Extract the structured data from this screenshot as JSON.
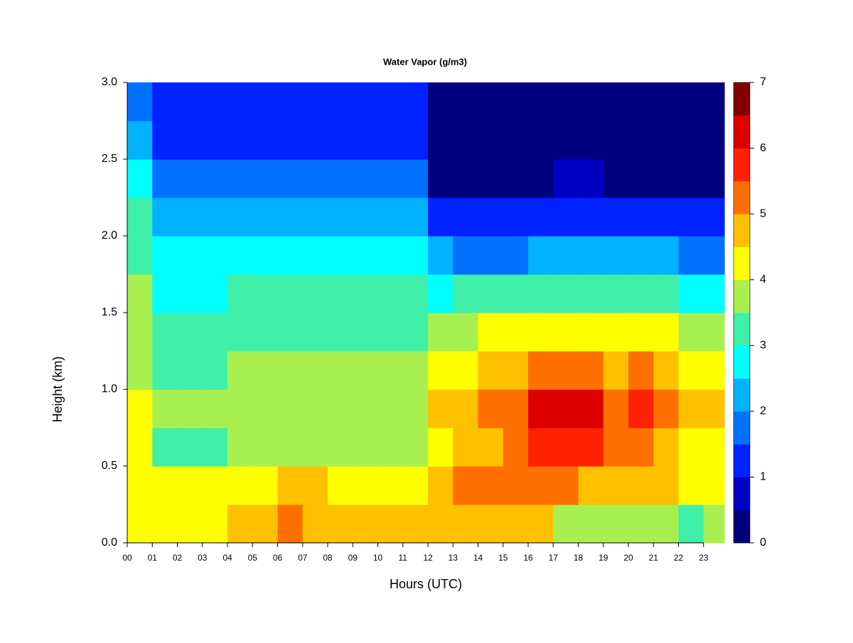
{
  "chart_data": {
    "type": "heatmap",
    "title": "Water Vapor (g/m3)",
    "xlabel": "Hours (UTC)",
    "ylabel": "Height (km)",
    "x": [
      0,
      1,
      2,
      3,
      4,
      5,
      6,
      7,
      8,
      9,
      10,
      11,
      12,
      13,
      14,
      15,
      16,
      17,
      18,
      19,
      20,
      21,
      22,
      23
    ],
    "y": [
      0,
      0.25,
      0.5,
      0.75,
      1,
      1.25,
      1.5,
      1.75,
      2,
      2.25,
      2.5,
      2.75
    ],
    "values": [
      [
        4.2,
        4.2,
        4.2,
        4.2,
        4.7,
        4.7,
        5.3,
        4.8,
        4.6,
        4.6,
        4.8,
        4.6,
        4.7,
        4.7,
        4.6,
        4.6,
        4.6,
        3.8,
        3.8,
        3.8,
        3.8,
        3.8,
        3.4,
        3.6
      ],
      [
        4.2,
        4.2,
        4.2,
        4.2,
        4.3,
        4.3,
        4.6,
        4.6,
        4.2,
        4.2,
        4.4,
        4.2,
        4.7,
        5.1,
        5.2,
        5.2,
        5.2,
        5.2,
        4.8,
        4.8,
        4.8,
        4.6,
        4.1,
        4.1
      ],
      [
        4.0,
        3.4,
        3.4,
        3.4,
        3.7,
        3.7,
        3.7,
        3.7,
        3.7,
        3.7,
        3.7,
        3.7,
        4.2,
        4.7,
        4.8,
        5.0,
        5.6,
        5.6,
        5.6,
        5.0,
        5.0,
        4.7,
        4.2,
        4.2
      ],
      [
        4.0,
        3.5,
        3.5,
        3.5,
        3.7,
        3.7,
        3.7,
        3.7,
        3.7,
        3.7,
        3.7,
        3.7,
        4.6,
        4.9,
        5.3,
        5.4,
        6.0,
        6.0,
        6.0,
        5.4,
        5.6,
        5.2,
        4.8,
        4.8
      ],
      [
        3.9,
        3.4,
        3.4,
        3.4,
        3.6,
        3.6,
        3.6,
        3.6,
        3.6,
        3.6,
        3.6,
        3.6,
        4.2,
        4.4,
        4.6,
        4.8,
        5.3,
        5.3,
        5.3,
        4.8,
        5.0,
        4.6,
        4.2,
        4.2
      ],
      [
        3.7,
        3.1,
        3.1,
        3.1,
        3.3,
        3.3,
        3.3,
        3.3,
        3.3,
        3.3,
        3.3,
        3.3,
        3.8,
        3.9,
        4.0,
        4.0,
        4.3,
        4.3,
        4.3,
        4.0,
        4.0,
        4.0,
        3.6,
        3.6
      ],
      [
        3.6,
        2.9,
        2.9,
        2.9,
        3.1,
        3.1,
        3.1,
        3.1,
        3.1,
        3.1,
        3.1,
        3.1,
        2.8,
        3.0,
        3.0,
        3.0,
        3.4,
        3.4,
        3.4,
        3.2,
        3.2,
        3.2,
        2.8,
        2.8
      ],
      [
        3.4,
        2.8,
        2.8,
        2.8,
        2.9,
        2.9,
        2.9,
        2.9,
        2.9,
        2.9,
        2.9,
        2.9,
        2.2,
        1.8,
        1.8,
        1.8,
        2.3,
        2.3,
        2.3,
        2.0,
        2.0,
        2.0,
        1.8,
        1.8
      ],
      [
        3.0,
        2.3,
        2.3,
        2.3,
        2.4,
        2.4,
        2.4,
        2.4,
        2.4,
        2.4,
        2.4,
        2.4,
        1.3,
        1.1,
        1.1,
        1.1,
        1.4,
        1.4,
        1.4,
        1.2,
        1.2,
        1.2,
        1.0,
        1.0
      ],
      [
        2.6,
        1.8,
        1.8,
        1.8,
        1.9,
        1.9,
        1.9,
        1.9,
        1.9,
        1.9,
        1.9,
        1.9,
        0.4,
        0.4,
        0.4,
        0.4,
        0.4,
        0.7,
        0.7,
        0.4,
        0.4,
        0.4,
        0.4,
        0.4
      ],
      [
        2.2,
        1.4,
        1.4,
        1.4,
        1.3,
        1.3,
        1.3,
        1.3,
        1.3,
        1.3,
        1.3,
        1.3,
        0.3,
        0.3,
        0.3,
        0.3,
        0.3,
        0.3,
        0.3,
        0.3,
        0.3,
        0.3,
        0.3,
        0.3
      ],
      [
        1.7,
        1.1,
        1.1,
        1.1,
        1.0,
        1.0,
        1.0,
        1.0,
        1.0,
        1.0,
        1.0,
        1.0,
        0.2,
        0.2,
        0.2,
        0.2,
        0.2,
        0.2,
        0.2,
        0.2,
        0.2,
        0.2,
        0.2,
        0.2
      ]
    ],
    "xlim": [
      0,
      23.83
    ],
    "ylim": [
      0,
      3
    ],
    "xticks": [
      {
        "value": 0,
        "label": "00"
      },
      {
        "value": 1,
        "label": "01"
      },
      {
        "value": 2,
        "label": "02"
      },
      {
        "value": 3,
        "label": "03"
      },
      {
        "value": 4,
        "label": "04"
      },
      {
        "value": 5,
        "label": "05"
      },
      {
        "value": 6,
        "label": "06"
      },
      {
        "value": 7,
        "label": "07"
      },
      {
        "value": 8,
        "label": "08"
      },
      {
        "value": 9,
        "label": "09"
      },
      {
        "value": 10,
        "label": "10"
      },
      {
        "value": 11,
        "label": "11"
      },
      {
        "value": 12,
        "label": "12"
      },
      {
        "value": 13,
        "label": "13"
      },
      {
        "value": 14,
        "label": "14"
      },
      {
        "value": 15,
        "label": "15"
      },
      {
        "value": 16,
        "label": "16"
      },
      {
        "value": 17,
        "label": "17"
      },
      {
        "value": 18,
        "label": "18"
      },
      {
        "value": 19,
        "label": "19"
      },
      {
        "value": 20,
        "label": "20"
      },
      {
        "value": 21,
        "label": "21"
      },
      {
        "value": 22,
        "label": "22"
      },
      {
        "value": 23,
        "label": "23"
      }
    ],
    "yticks": [
      {
        "value": 0,
        "label": "0.0"
      },
      0.5,
      {
        "value": 1,
        "label": "1.0"
      },
      1.5,
      {
        "value": 2,
        "label": "2.0"
      },
      2.5,
      {
        "value": 3,
        "label": "3.0"
      }
    ],
    "colorbar": {
      "levels": [
        0,
        0.5,
        1,
        1.5,
        2,
        2.5,
        3,
        3.5,
        4,
        4.5,
        5,
        5.5,
        6,
        6.5,
        7
      ],
      "colors": [
        "#00007f",
        "#0000c4",
        "#0022ff",
        "#0070ff",
        "#00b2ff",
        "#00ffff",
        "#40f0a8",
        "#a8f050",
        "#ffff00",
        "#ffc000",
        "#ff7000",
        "#ff2200",
        "#dd0000",
        "#800000"
      ],
      "ticks": [
        0,
        1,
        2,
        3,
        4,
        5,
        6,
        7
      ]
    }
  }
}
